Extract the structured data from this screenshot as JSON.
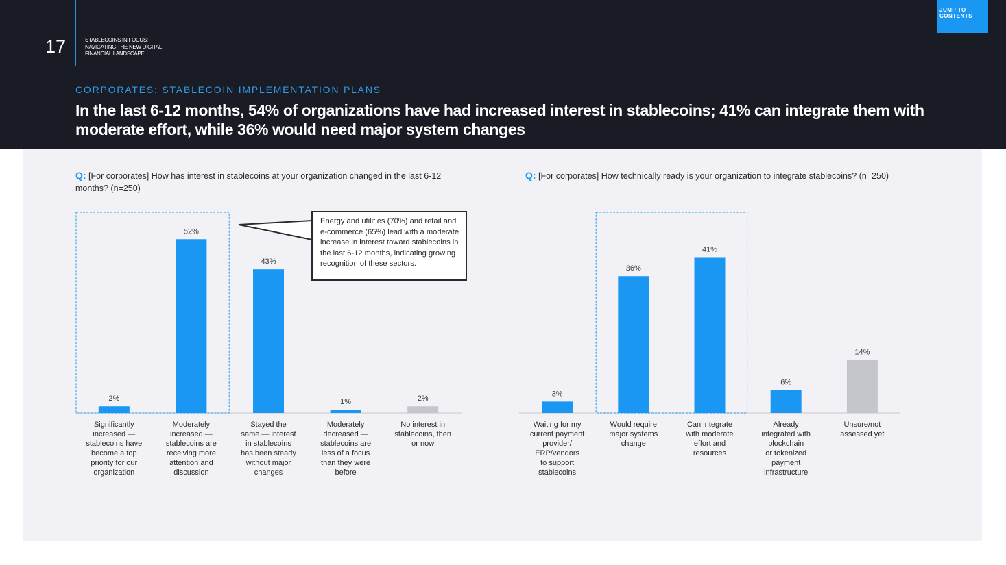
{
  "header": {
    "page_number": "17",
    "doc_title": "STABLECOINS IN FOCUS: NAVIGATING THE NEW DIGITAL FINANCIAL LANDSCAPE",
    "jump_label": "JUMP TO CONTENTS",
    "section_label": "CORPORATES: STABLECOIN IMPLEMENTATION PLANS",
    "headline": "In the last 6-12 months, 54% of organizations have had increased interest in stablecoins; 41% can integrate them with moderate effort, while 36% would need major system changes"
  },
  "colors": {
    "bar_primary": "#1997f2",
    "bar_neutral": "#c5c6cc",
    "header_bg": "#1a1c25",
    "panel_bg": "#f2f2f6"
  },
  "left": {
    "q_marker": "Q:",
    "question": "[For corporates] How has interest in stablecoins at your organization changed in the last 6-12 months? (n=250)",
    "callout": "Energy and utilities (70%) and retail and e-commerce (65%) lead with a moderate increase in interest toward stablecoins in the last 6-12 months, indicating growing recognition of these sectors."
  },
  "right": {
    "q_marker": "Q:",
    "question": "[For corporates] How technically ready is your organization to integrate stablecoins? (n=250)"
  },
  "chart_data": [
    {
      "type": "bar",
      "unit": "%",
      "categories": [
        "Significantly increased — stablecoins have become a top priority for our organization",
        "Moderately increased — stablecoins are receiving more attention and discussion",
        "Stayed the same — interest in stablecoins has been steady without major changes",
        "Moderately decreased — stablecoins are less of a focus than they were before",
        "No interest in stablecoins, then or now"
      ],
      "label_lines": [
        [
          "Significantly",
          "increased —",
          "stablecoins have",
          "become a top",
          "priority for our",
          "organization"
        ],
        [
          "Moderately",
          "increased —",
          "stablecoins are",
          "receiving more",
          "attention and",
          "discussion"
        ],
        [
          "Stayed the",
          "same — interest",
          "in stablecoins",
          "has been steady",
          "without major",
          "changes"
        ],
        [
          "Moderately",
          "decreased —",
          "stablecoins are",
          "less of a focus",
          "than they were",
          "before"
        ],
        [
          "No interest in",
          "stablecoins, then",
          "or now"
        ]
      ],
      "values": [
        2,
        52,
        43,
        1,
        2
      ],
      "value_labels": [
        "2%",
        "52%",
        "43%",
        "1%",
        "2%"
      ],
      "bar_colors": [
        "#1997f2",
        "#1997f2",
        "#1997f2",
        "#1997f2",
        "#c5c6cc"
      ],
      "highlighted": [
        0,
        1
      ],
      "ylim": [
        0,
        58
      ]
    },
    {
      "type": "bar",
      "unit": "%",
      "categories": [
        "Waiting for my current payment provider/ ERP/vendors to support stablecoins",
        "Would require major systems change",
        "Can integrate with moderate effort and resources",
        "Already integrated with blockchain or tokenized payment infrastructure",
        "Unsure/not assessed yet"
      ],
      "label_lines": [
        [
          "Waiting for my",
          "current payment",
          "provider/",
          "ERP/vendors",
          "to support",
          "stablecoins"
        ],
        [
          "Would require",
          "major systems",
          "change"
        ],
        [
          "Can integrate",
          "with moderate",
          "effort and",
          "resources"
        ],
        [
          "Already",
          "integrated with",
          "blockchain",
          "or tokenized",
          "payment",
          "infrastructure"
        ],
        [
          "Unsure/not",
          "assessed yet"
        ]
      ],
      "values": [
        3,
        36,
        41,
        6,
        14
      ],
      "value_labels": [
        "3%",
        "36%",
        "41%",
        "6%",
        "14%"
      ],
      "bar_colors": [
        "#1997f2",
        "#1997f2",
        "#1997f2",
        "#1997f2",
        "#c5c6cc"
      ],
      "highlighted": [
        1,
        2
      ],
      "ylim": [
        0,
        51
      ]
    }
  ]
}
